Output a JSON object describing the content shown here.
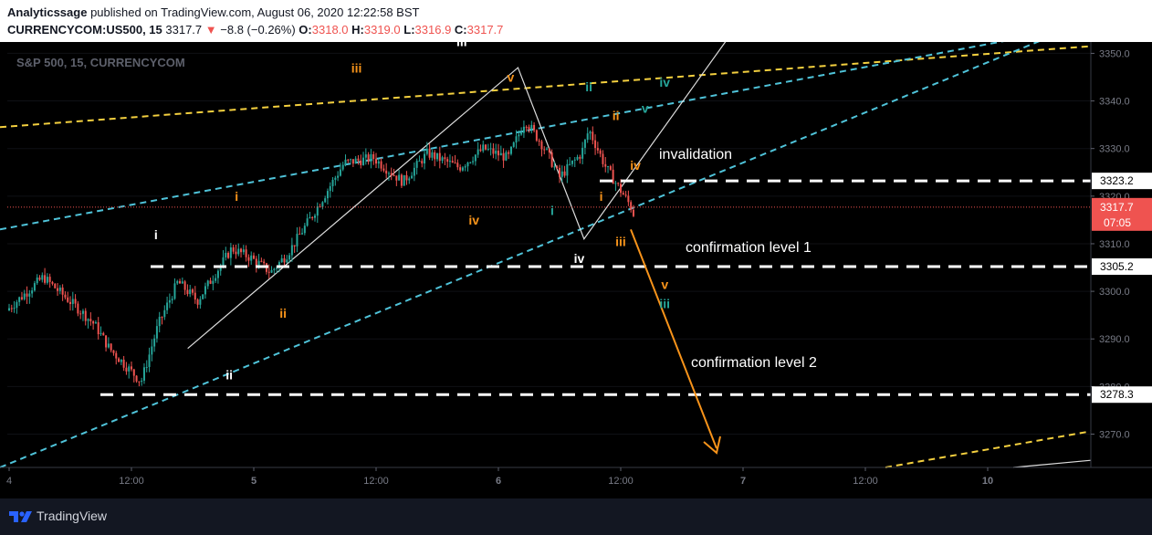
{
  "header": {
    "publisher": "Analyticssage",
    "published_text": "published on TradingView.com, August 06, 2020 12:22:58 BST",
    "symbol": "CURRENCYCOM:US500, 15",
    "last": "3317.7",
    "change": "−8.8 (−0.26%)",
    "o_label": "O:",
    "o": "3318.0",
    "h_label": "H:",
    "h": "3319.0",
    "l_label": "L:",
    "l": "3316.9",
    "c_label": "C:",
    "c": "3317.7"
  },
  "chart_title": "S&P 500, 15, CURRENCYCOM",
  "price_badges": {
    "current": "3317.7",
    "countdown": "07:05",
    "invalidation": "3323.2",
    "confirmation1": "3305.2",
    "confirmation2": "3278.3"
  },
  "annotations": {
    "invalidation": "invalidation",
    "confirmation1": "confirmation level 1",
    "confirmation2": "confirmation level 2"
  },
  "footer": {
    "brand": "TradingView"
  },
  "colors": {
    "background": "#000000",
    "up_candle": "#26a69a",
    "down_candle": "#ef5350",
    "channel_cyan": "#4fc3d9",
    "channel_yellow": "#f4d03f",
    "wave_orange": "#f7931a",
    "wave_teal": "#26a69a"
  },
  "chart_data": {
    "type": "candlestick",
    "title": "S&P 500, 15, CURRENCYCOM",
    "x_tick_labels": [
      "4",
      "12:00",
      "5",
      "12:00",
      "6",
      "12:00",
      "7",
      "12:00",
      "10"
    ],
    "y_tick_labels": [
      "3270.0",
      "3280.0",
      "3290.0",
      "3300.0",
      "3310.0",
      "3320.0",
      "3330.0",
      "3340.0",
      "3350.0"
    ],
    "ylim": [
      3263,
      3352
    ],
    "horizontal_levels": [
      {
        "name": "invalidation",
        "value": 3323.2
      },
      {
        "name": "confirmation level 1",
        "value": 3305.2
      },
      {
        "name": "confirmation level 2",
        "value": 3278.3
      }
    ],
    "current_price": 3317.7,
    "wave_labels": [
      {
        "text": "i",
        "color": "white",
        "x": 0.6,
        "y": 3311.0
      },
      {
        "text": "ii",
        "color": "white",
        "x": 0.9,
        "y": 3281.5
      },
      {
        "text": "iii",
        "color": "white",
        "x": 1.85,
        "y": 3351.5
      },
      {
        "text": "iv",
        "color": "white",
        "x": 2.33,
        "y": 3306.0
      },
      {
        "text": "i",
        "color": "orange",
        "x": 0.93,
        "y": 3319.0
      },
      {
        "text": "ii",
        "color": "orange",
        "x": 1.12,
        "y": 3294.5
      },
      {
        "text": "iii",
        "color": "orange",
        "x": 1.42,
        "y": 3346.0
      },
      {
        "text": "iv",
        "color": "orange",
        "x": 1.9,
        "y": 3314.0
      },
      {
        "text": "v",
        "color": "orange",
        "x": 2.05,
        "y": 3344.0
      },
      {
        "text": "i",
        "color": "orange",
        "x": 2.42,
        "y": 3319.0
      },
      {
        "text": "ii",
        "color": "orange",
        "x": 2.48,
        "y": 3336.0
      },
      {
        "text": "iii",
        "color": "orange",
        "x": 2.5,
        "y": 3309.5
      },
      {
        "text": "iv",
        "color": "orange",
        "x": 2.56,
        "y": 3325.5
      },
      {
        "text": "v",
        "color": "orange",
        "x": 2.68,
        "y": 3300.5
      },
      {
        "text": "i",
        "color": "teal",
        "x": 2.22,
        "y": 3316.0
      },
      {
        "text": "ii",
        "color": "teal",
        "x": 2.37,
        "y": 3342.0
      },
      {
        "text": "iii",
        "color": "teal",
        "x": 2.68,
        "y": 3296.5
      },
      {
        "text": "iv",
        "color": "teal",
        "x": 2.68,
        "y": 3343.0
      },
      {
        "text": "v",
        "color": "teal",
        "x": 2.6,
        "y": 3337.5
      }
    ]
  }
}
